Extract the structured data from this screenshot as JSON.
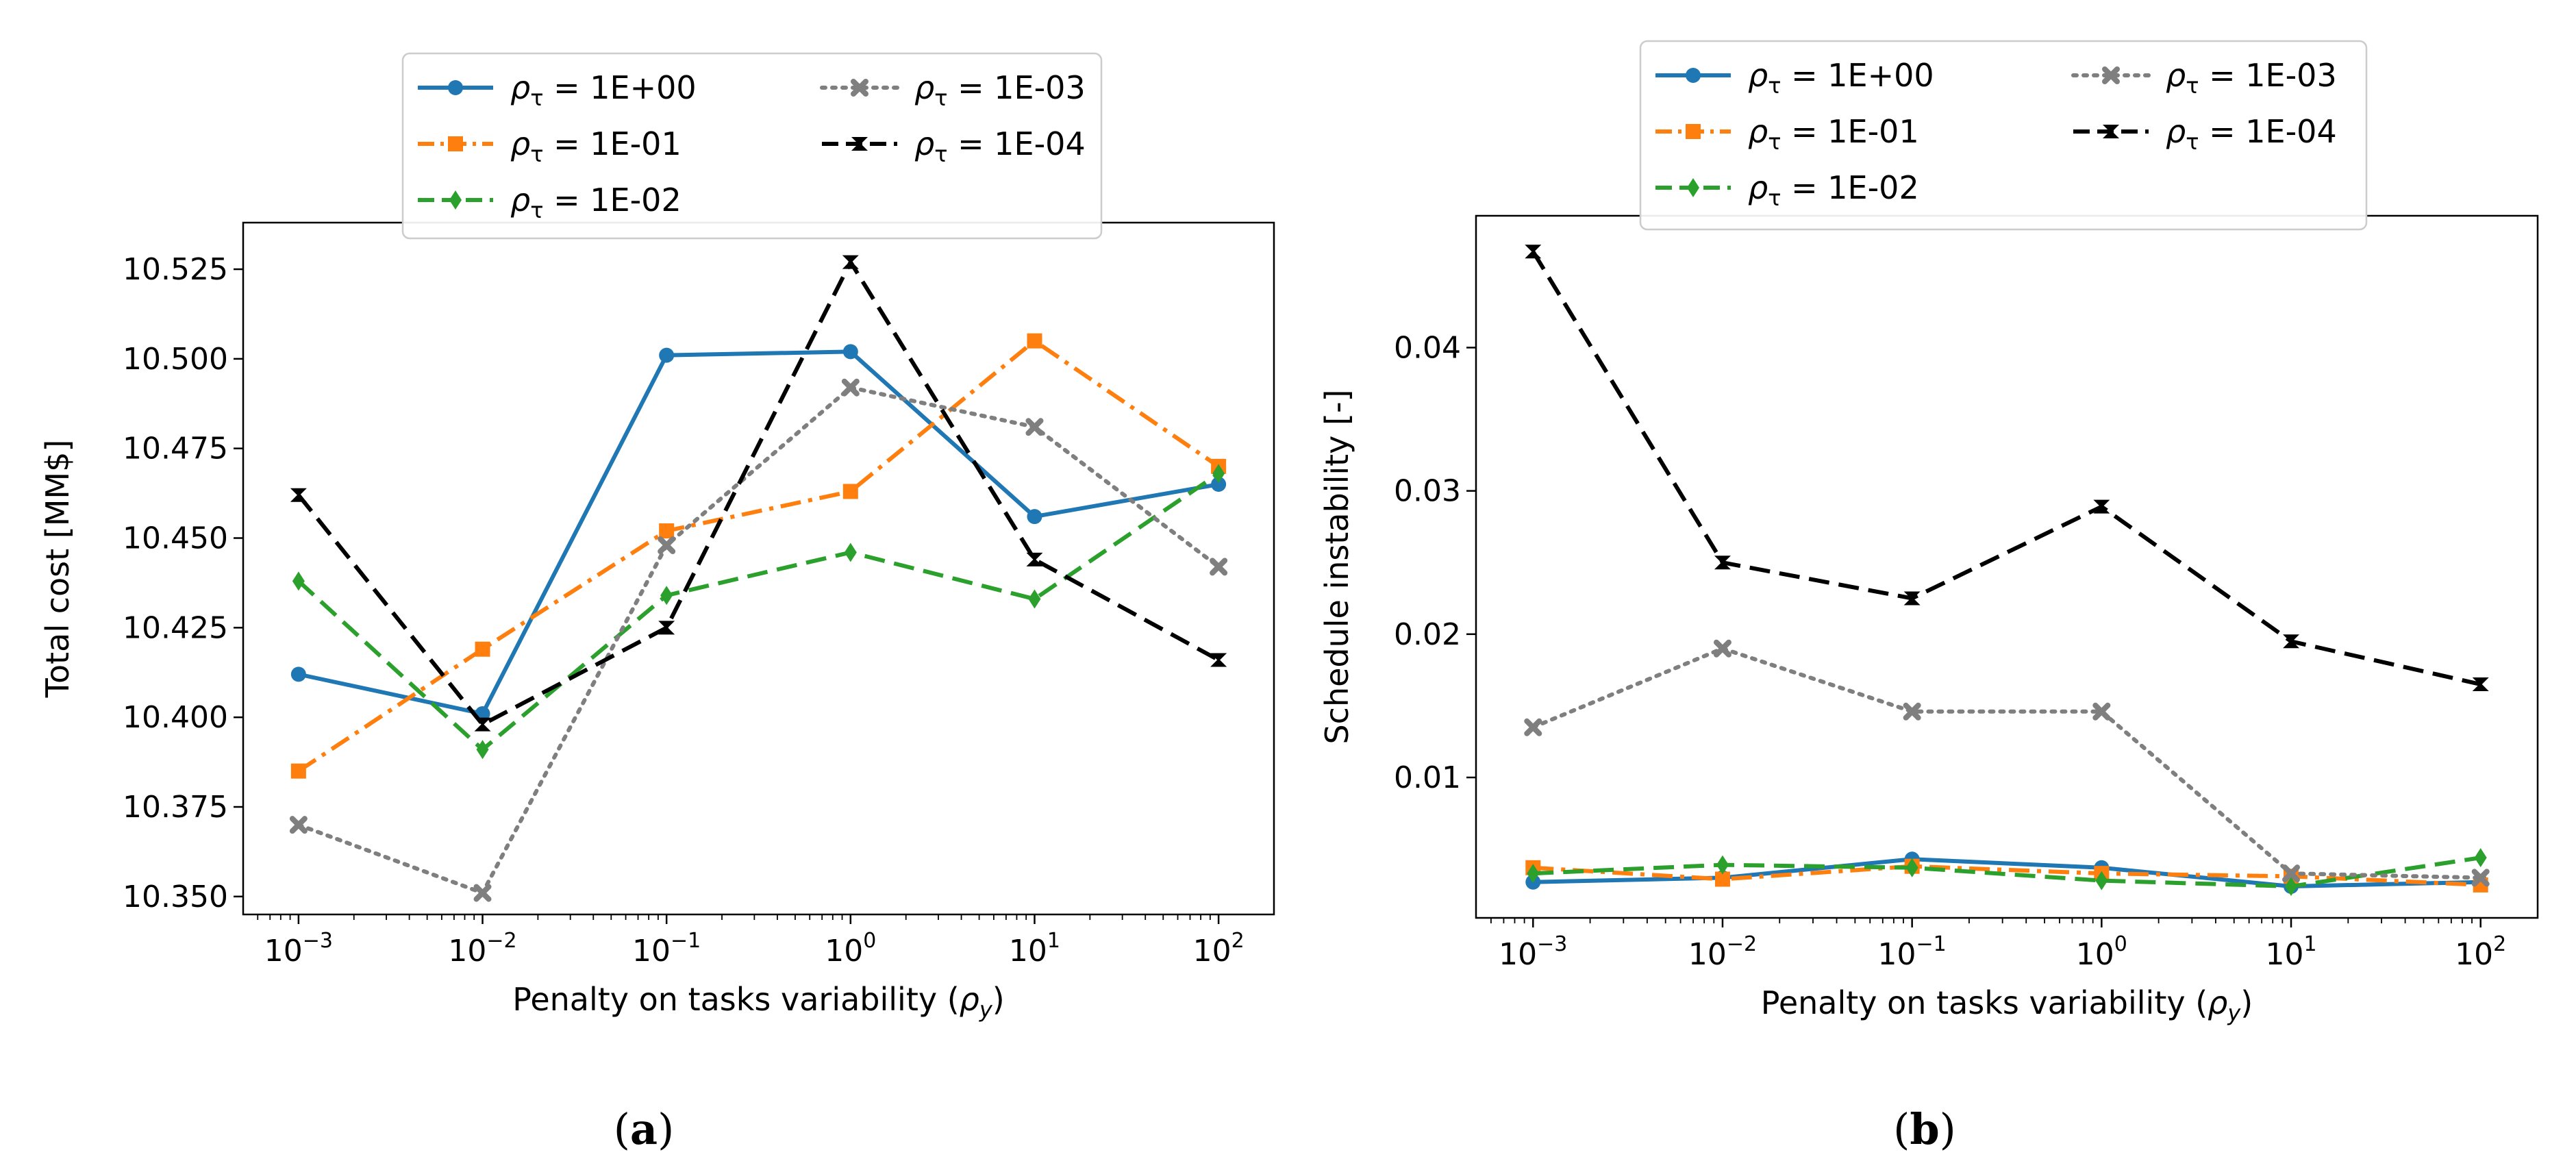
{
  "chart_data": [
    {
      "type": "line",
      "panel": "a",
      "ylabel": "Total cost [MM$]",
      "xlabel_prefix": "Penalty on tasks variability (",
      "xlabel_symbol": "ρ",
      "xlabel_sub": "y",
      "xlabel_suffix": ")",
      "x_scale": "log",
      "x": [
        0.001,
        0.01,
        0.1,
        1,
        10,
        100
      ],
      "x_tick_base": "10",
      "x_tick_exponents": [
        "−3",
        "−2",
        "−1",
        "0",
        "1",
        "2"
      ],
      "xlim": [
        0.0005,
        200
      ],
      "ylim": [
        10.345,
        10.538
      ],
      "yticks": [
        10.35,
        10.375,
        10.4,
        10.425,
        10.45,
        10.475,
        10.5,
        10.525
      ],
      "ytick_labels": [
        "10.350",
        "10.375",
        "10.400",
        "10.425",
        "10.450",
        "10.475",
        "10.500",
        "10.525"
      ],
      "grid": false,
      "legend_placement": "top-center, above plot",
      "series": [
        {
          "name_symbol": "ρ",
          "name_sub": "τ",
          "name_value": " = 1E+00",
          "color": "#1f77b4",
          "dash": "solid",
          "marker": "circle",
          "values": [
            10.412,
            10.401,
            10.501,
            10.502,
            10.456,
            10.465
          ]
        },
        {
          "name_symbol": "ρ",
          "name_sub": "τ",
          "name_value": " = 1E-01",
          "color": "#ff7f0e",
          "dash": "dashdot",
          "marker": "square",
          "values": [
            10.385,
            10.419,
            10.452,
            10.463,
            10.505,
            10.47
          ]
        },
        {
          "name_symbol": "ρ",
          "name_sub": "τ",
          "name_value": " = 1E-02",
          "color": "#2ca02c",
          "dash": "dashed",
          "marker": "diamond",
          "values": [
            10.438,
            10.391,
            10.434,
            10.446,
            10.433,
            10.468
          ]
        },
        {
          "name_symbol": "ρ",
          "name_sub": "τ",
          "name_value": " = 1E-03",
          "color": "#7f7f7f",
          "dash": "dotted",
          "marker": "x",
          "values": [
            10.37,
            10.351,
            10.448,
            10.492,
            10.481,
            10.442
          ]
        },
        {
          "name_symbol": "ρ",
          "name_sub": "τ",
          "name_value": " = 1E-04",
          "color": "#000000",
          "dash": "dashed",
          "marker": "triangle",
          "values": [
            10.462,
            10.398,
            10.425,
            10.527,
            10.444,
            10.416
          ]
        }
      ],
      "caption": "a"
    },
    {
      "type": "line",
      "panel": "b",
      "ylabel": "Schedule instability [-]",
      "xlabel_prefix": "Penalty on tasks variability (",
      "xlabel_symbol": "ρ",
      "xlabel_sub": "y",
      "xlabel_suffix": ")",
      "x_scale": "log",
      "x": [
        0.001,
        0.01,
        0.1,
        1,
        10,
        100
      ],
      "x_tick_base": "10",
      "x_tick_exponents": [
        "−3",
        "−2",
        "−1",
        "0",
        "1",
        "2"
      ],
      "xlim": [
        0.0005,
        200
      ],
      "ylim": [
        0.0002,
        0.0492
      ],
      "yticks": [
        0.01,
        0.02,
        0.03,
        0.04
      ],
      "ytick_labels": [
        "0.01",
        "0.02",
        "0.03",
        "0.04"
      ],
      "grid": false,
      "legend_placement": "top-center, above plot",
      "series": [
        {
          "name_symbol": "ρ",
          "name_sub": "τ",
          "name_value": " = 1E+00",
          "color": "#1f77b4",
          "dash": "solid",
          "marker": "circle",
          "values": [
            0.0027,
            0.003,
            0.0043,
            0.0037,
            0.0024,
            0.0027
          ]
        },
        {
          "name_symbol": "ρ",
          "name_sub": "τ",
          "name_value": " = 1E-01",
          "color": "#ff7f0e",
          "dash": "dashdot",
          "marker": "square",
          "values": [
            0.0037,
            0.0029,
            0.0038,
            0.0033,
            0.0031,
            0.0025
          ]
        },
        {
          "name_symbol": "ρ",
          "name_sub": "τ",
          "name_value": " = 1E-02",
          "color": "#2ca02c",
          "dash": "dashed",
          "marker": "diamond",
          "values": [
            0.0033,
            0.0039,
            0.0037,
            0.0028,
            0.0024,
            0.0044
          ]
        },
        {
          "name_symbol": "ρ",
          "name_sub": "τ",
          "name_value": " = 1E-03",
          "color": "#7f7f7f",
          "dash": "dotted",
          "marker": "x",
          "values": [
            0.0135,
            0.019,
            0.0146,
            0.0146,
            0.0033,
            0.003
          ]
        },
        {
          "name_symbol": "ρ",
          "name_sub": "τ",
          "name_value": " = 1E-04",
          "color": "#000000",
          "dash": "dashed",
          "marker": "triangle",
          "values": [
            0.0467,
            0.025,
            0.0225,
            0.0289,
            0.0195,
            0.0165
          ]
        }
      ],
      "caption": "b"
    }
  ]
}
